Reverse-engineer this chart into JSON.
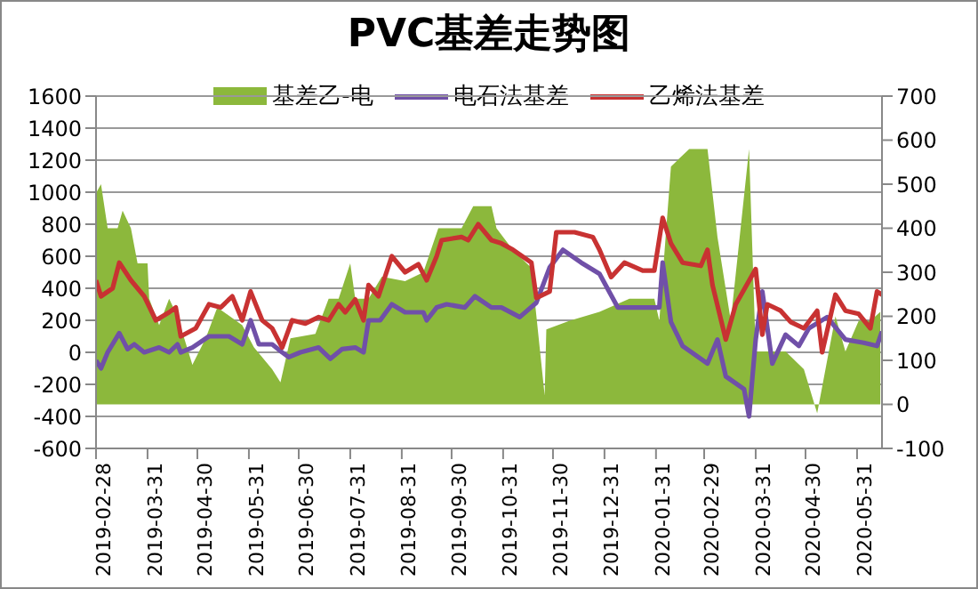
{
  "chart_data": {
    "type": "line",
    "title": "PVC基差走势图",
    "xlim": [
      "2019-02-28",
      "2020-06-15"
    ],
    "xticks": [
      "2019-02-28",
      "2019-03-31",
      "2019-04-30",
      "2019-05-31",
      "2019-06-30",
      "2019-07-31",
      "2019-08-31",
      "2019-09-30",
      "2019-10-31",
      "2019-11-30",
      "2019-12-31",
      "2020-01-31",
      "2020-02-29",
      "2020-03-31",
      "2020-04-30",
      "2020-05-31"
    ],
    "ylim": [
      -600,
      1600
    ],
    "yticks": [
      -600,
      -400,
      -200,
      0,
      200,
      400,
      600,
      800,
      1000,
      1200,
      1400,
      1600
    ],
    "y2lim": [
      -100,
      700
    ],
    "y2ticks": [
      -100,
      0,
      100,
      200,
      300,
      400,
      500,
      600,
      700
    ],
    "grid": "y",
    "legend": "top",
    "line_style": "solid",
    "marker": "none",
    "series": [
      {
        "name": "基差乙-电",
        "type": "area",
        "axis": "y2",
        "color": "#8cb83c",
        "x": [
          "2019-02-28",
          "2019-03-03",
          "2019-03-07",
          "2019-03-13",
          "2019-03-16",
          "2019-03-21",
          "2019-03-25",
          "2019-03-31",
          "2019-04-01",
          "2019-04-07",
          "2019-04-13",
          "2019-04-18",
          "2019-04-27",
          "2019-05-05",
          "2019-05-12",
          "2019-05-27",
          "2019-06-03",
          "2019-06-14",
          "2019-06-19",
          "2019-06-25",
          "2019-07-10",
          "2019-07-18",
          "2019-07-24",
          "2019-07-31",
          "2019-08-03",
          "2019-08-11",
          "2019-08-19",
          "2019-09-02",
          "2019-09-13",
          "2019-09-22",
          "2019-10-06",
          "2019-10-13",
          "2019-10-24",
          "2019-10-27",
          "2019-11-06",
          "2019-11-17",
          "2019-11-25",
          "2019-11-26",
          "2019-12-10",
          "2019-12-28",
          "2020-01-15",
          "2020-01-30",
          "2020-02-02",
          "2020-02-09",
          "2020-02-20",
          "2020-03-02",
          "2020-03-08",
          "2020-03-16",
          "2020-03-27",
          "2020-03-31",
          "2020-04-07",
          "2020-04-18",
          "2020-04-29",
          "2020-05-07",
          "2020-05-12",
          "2020-05-18",
          "2020-05-24",
          "2020-06-01",
          "2020-06-08",
          "2020-06-14"
        ],
        "values": [
          480,
          500,
          400,
          400,
          440,
          400,
          320,
          320,
          240,
          180,
          240,
          200,
          90,
          150,
          220,
          180,
          130,
          80,
          50,
          150,
          160,
          240,
          240,
          320,
          240,
          240,
          290,
          280,
          300,
          400,
          400,
          450,
          450,
          400,
          350,
          310,
          20,
          170,
          190,
          210,
          240,
          240,
          190,
          540,
          580,
          580,
          380,
          190,
          580,
          120,
          120,
          120,
          80,
          -20,
          80,
          200,
          120,
          190,
          190,
          210
        ]
      },
      {
        "name": "电石法基差",
        "color": "#7050a8",
        "x": [
          "2019-02-28",
          "2019-03-03",
          "2019-03-07",
          "2019-03-14",
          "2019-03-19",
          "2019-03-23",
          "2019-03-29",
          "2019-04-07",
          "2019-04-13",
          "2019-04-18",
          "2019-04-20",
          "2019-04-27",
          "2019-05-07",
          "2019-05-19",
          "2019-05-27",
          "2019-06-01",
          "2019-06-06",
          "2019-06-14",
          "2019-06-20",
          "2019-06-24",
          "2019-07-01",
          "2019-07-12",
          "2019-07-19",
          "2019-07-26",
          "2019-08-03",
          "2019-08-08",
          "2019-08-11",
          "2019-08-18",
          "2019-08-25",
          "2019-09-02",
          "2019-09-13",
          "2019-09-15",
          "2019-09-21",
          "2019-09-27",
          "2019-10-08",
          "2019-10-14",
          "2019-10-24",
          "2019-10-30",
          "2019-11-10",
          "2019-11-20",
          "2019-11-28",
          "2019-12-06",
          "2019-12-17",
          "2019-12-28",
          "2020-01-08",
          "2020-01-15",
          "2020-02-02",
          "2020-02-04",
          "2020-02-09",
          "2020-02-16",
          "2020-03-02",
          "2020-03-08",
          "2020-03-13",
          "2020-03-24",
          "2020-03-27",
          "2020-03-31",
          "2020-04-04",
          "2020-04-10",
          "2020-04-18",
          "2020-04-26",
          "2020-05-02",
          "2020-05-13",
          "2020-05-24",
          "2020-06-04",
          "2020-06-12",
          "2020-06-15"
        ],
        "values": [
          -50,
          -100,
          0,
          120,
          20,
          50,
          0,
          30,
          0,
          50,
          0,
          30,
          100,
          100,
          50,
          200,
          50,
          50,
          0,
          -30,
          0,
          30,
          -40,
          20,
          30,
          0,
          200,
          200,
          300,
          250,
          250,
          200,
          280,
          300,
          280,
          350,
          280,
          280,
          220,
          310,
          530,
          640,
          560,
          490,
          280,
          280,
          280,
          560,
          190,
          40,
          -70,
          80,
          -150,
          -230,
          -400,
          80,
          380,
          -70,
          110,
          40,
          150,
          220,
          80,
          60,
          40,
          130
        ]
      },
      {
        "name": "乙烯法基差",
        "color": "#c83232",
        "x": [
          "2019-02-28",
          "2019-03-03",
          "2019-03-10",
          "2019-03-14",
          "2019-03-21",
          "2019-03-29",
          "2019-04-05",
          "2019-04-13",
          "2019-04-17",
          "2019-04-20",
          "2019-04-29",
          "2019-05-07",
          "2019-05-14",
          "2019-05-21",
          "2019-05-27",
          "2019-06-01",
          "2019-06-08",
          "2019-06-14",
          "2019-06-20",
          "2019-06-26",
          "2019-07-04",
          "2019-07-12",
          "2019-07-18",
          "2019-07-24",
          "2019-07-28",
          "2019-08-03",
          "2019-08-08",
          "2019-08-11",
          "2019-08-17",
          "2019-08-25",
          "2019-09-02",
          "2019-09-10",
          "2019-09-15",
          "2019-09-21",
          "2019-09-24",
          "2019-10-06",
          "2019-10-10",
          "2019-10-16",
          "2019-10-24",
          "2019-10-30",
          "2019-11-06",
          "2019-11-17",
          "2019-11-20",
          "2019-11-28",
          "2019-12-02",
          "2019-12-13",
          "2019-12-24",
          "2019-12-28",
          "2020-01-04",
          "2020-01-12",
          "2020-01-23",
          "2020-01-30",
          "2020-02-04",
          "2020-02-09",
          "2020-02-16",
          "2020-02-27",
          "2020-03-02",
          "2020-03-05",
          "2020-03-13",
          "2020-03-19",
          "2020-03-31",
          "2020-04-04",
          "2020-04-07",
          "2020-04-15",
          "2020-04-21",
          "2020-04-29",
          "2020-05-07",
          "2020-05-10",
          "2020-05-18",
          "2020-05-24",
          "2020-06-01",
          "2020-06-08",
          "2020-06-12",
          "2020-06-15"
        ],
        "values": [
          450,
          350,
          400,
          560,
          450,
          350,
          200,
          250,
          280,
          100,
          150,
          300,
          280,
          350,
          200,
          380,
          200,
          150,
          30,
          200,
          180,
          220,
          200,
          300,
          250,
          330,
          200,
          420,
          350,
          600,
          500,
          550,
          450,
          600,
          700,
          720,
          700,
          800,
          700,
          680,
          640,
          560,
          340,
          380,
          750,
          750,
          720,
          640,
          470,
          560,
          510,
          510,
          840,
          680,
          560,
          540,
          640,
          420,
          80,
          300,
          520,
          110,
          300,
          260,
          190,
          150,
          260,
          0,
          360,
          260,
          240,
          150,
          380,
          360
        ]
      }
    ]
  }
}
